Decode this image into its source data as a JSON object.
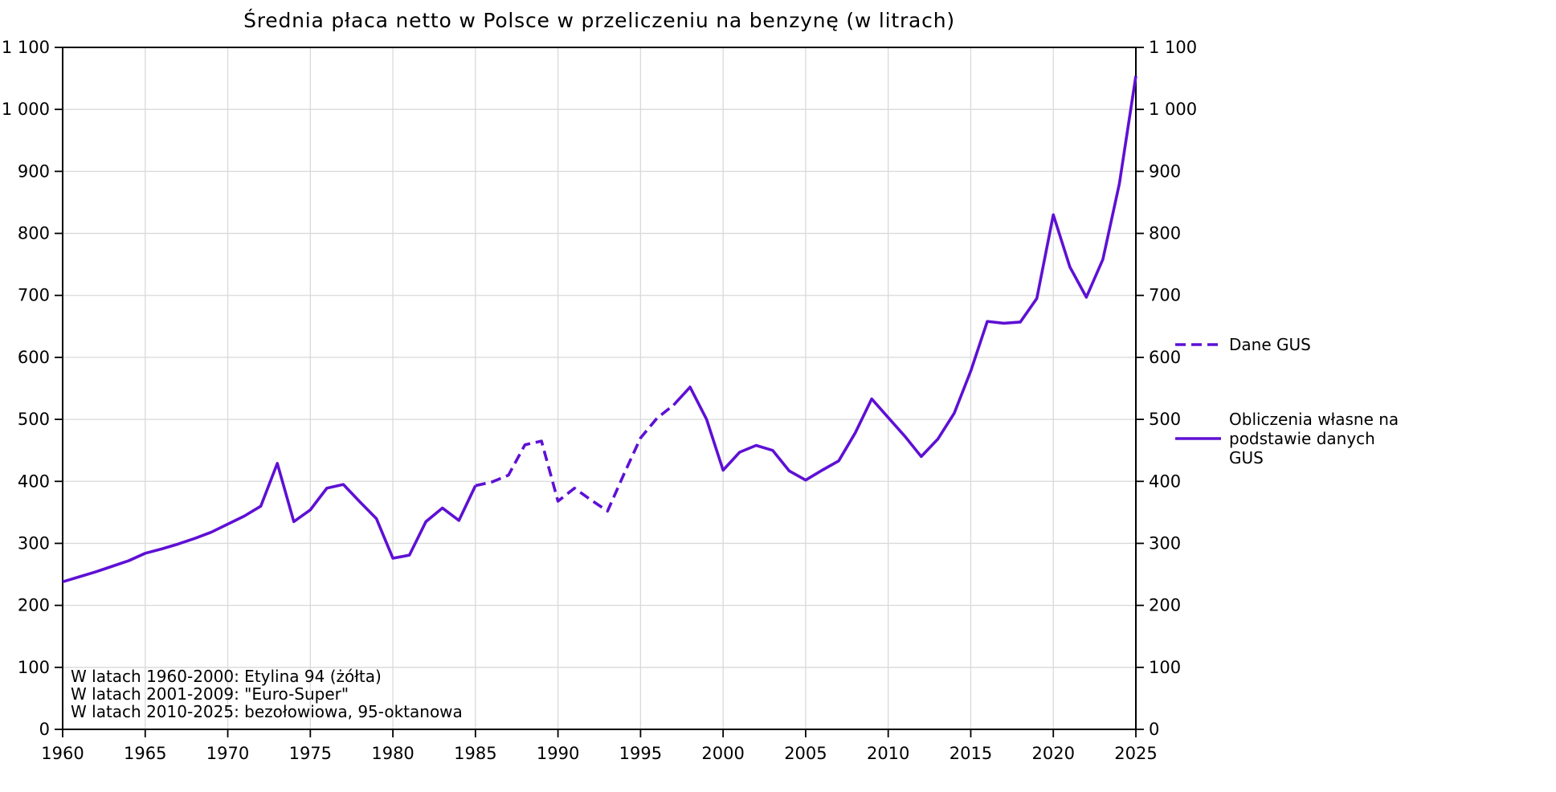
{
  "title": "Średnia płaca netto w Polsce w przeliczeniu na benzynę (w litrach)",
  "annotation": {
    "line1": "W latach 1960-2000: Etylina 94 (żółta)",
    "line2": "W latach 2001-2009: \"Euro-Super\"",
    "line3": "W latach 2010-2025: bezołowiowa, 95-oktanowa"
  },
  "legend": {
    "item1": {
      "label": "Dane GUS",
      "style": "dashed"
    },
    "item2": {
      "label": "Obliczenia własne na podstawie danych GUS",
      "style": "solid"
    }
  },
  "colors": {
    "line": "#5e10d4",
    "grid": "#d9d9d9",
    "axis": "#000000",
    "background": "#ffffff"
  },
  "chart_data": {
    "type": "line",
    "title": "Średnia płaca netto w Polsce w przeliczeniu na benzynę (w litrach)",
    "xlabel": "",
    "ylabel": "",
    "xlim": [
      1960,
      2025
    ],
    "ylim": [
      0,
      1100
    ],
    "grid": true,
    "legend_position": "right-outside",
    "x_ticks": [
      1960,
      1965,
      1970,
      1975,
      1980,
      1985,
      1990,
      1995,
      2000,
      2005,
      2010,
      2015,
      2020,
      2025
    ],
    "x_tick_labels": [
      "1960",
      "1965",
      "1970",
      "1975",
      "1980",
      "1985",
      "1990",
      "1995",
      "2000",
      "2005",
      "2010",
      "2015",
      "2020",
      "2025"
    ],
    "y_ticks": [
      0,
      100,
      200,
      300,
      400,
      500,
      600,
      700,
      800,
      900,
      1000,
      1100
    ],
    "y_tick_labels": [
      "0",
      "100",
      "200",
      "300",
      "400",
      "500",
      "600",
      "700",
      "800",
      "900",
      "1 000",
      "1 100"
    ],
    "years": [
      1960,
      1961,
      1962,
      1963,
      1964,
      1965,
      1966,
      1967,
      1968,
      1969,
      1970,
      1971,
      1972,
      1973,
      1974,
      1975,
      1976,
      1977,
      1978,
      1979,
      1980,
      1981,
      1982,
      1983,
      1984,
      1985,
      1986,
      1987,
      1988,
      1989,
      1990,
      1991,
      1992,
      1993,
      1994,
      1995,
      1996,
      1997,
      1998,
      1999,
      2000,
      2001,
      2002,
      2003,
      2004,
      2005,
      2006,
      2007,
      2008,
      2009,
      2010,
      2011,
      2012,
      2013,
      2014,
      2015,
      2016,
      2017,
      2018,
      2019,
      2020,
      2021,
      2022,
      2023,
      2024,
      2025
    ],
    "values": [
      238,
      246,
      254,
      263,
      272,
      284,
      291,
      299,
      308,
      318,
      331,
      344,
      360,
      429,
      335,
      354,
      389,
      395,
      367,
      340,
      276,
      281,
      335,
      357,
      337,
      393,
      399,
      410,
      459,
      465,
      368,
      389,
      370,
      352,
      412,
      470,
      502,
      523,
      552,
      500,
      418,
      447,
      458,
      450,
      417,
      402,
      418,
      433,
      478,
      533,
      503,
      473,
      440,
      468,
      510,
      578,
      658,
      655,
      657,
      695,
      830,
      746,
      697,
      758,
      880,
      1054
    ],
    "segments": [
      {
        "from": 1960,
        "to": 1985,
        "style": "solid",
        "series": "Obliczenia własne na podstawie danych GUS"
      },
      {
        "from": 1985,
        "to": 1997,
        "style": "dashed",
        "series": "Dane GUS"
      },
      {
        "from": 1997,
        "to": 2025,
        "style": "solid",
        "series": "Obliczenia własne na podstawie danych GUS"
      }
    ]
  }
}
